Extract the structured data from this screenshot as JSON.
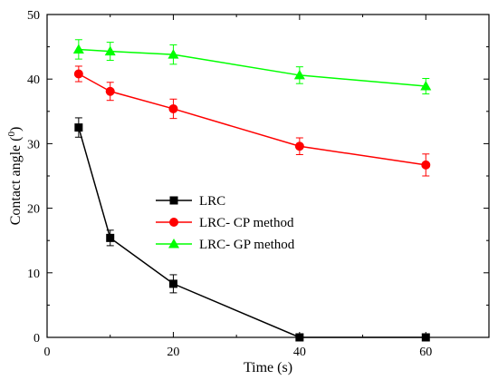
{
  "chart_data": {
    "type": "line",
    "xlabel": "Time (s)",
    "ylabel_main": "Contact angle (",
    "ylabel_sup": "0",
    "ylabel_end": ")",
    "xlim": [
      0,
      70
    ],
    "ylim": [
      0,
      50
    ],
    "xticks": [
      0,
      20,
      40,
      60
    ],
    "yticks": [
      0,
      10,
      20,
      30,
      40,
      50
    ],
    "grid": false,
    "legend_position": "center-left",
    "series": [
      {
        "name": "LRC",
        "color": "#000000",
        "marker": "square",
        "x": [
          5,
          10,
          20,
          40,
          60
        ],
        "y": [
          32.5,
          15.4,
          8.3,
          0,
          0
        ],
        "err": [
          1.5,
          1.2,
          1.4,
          0,
          0
        ]
      },
      {
        "name": "LRC- CP method",
        "color": "#ff0000",
        "marker": "circle",
        "x": [
          5,
          10,
          20,
          40,
          60
        ],
        "y": [
          40.8,
          38.1,
          35.4,
          29.6,
          26.7
        ],
        "err": [
          1.2,
          1.4,
          1.5,
          1.3,
          1.7
        ]
      },
      {
        "name": "LRC- GP method",
        "color": "#00ff00",
        "marker": "triangle",
        "x": [
          5,
          10,
          20,
          40,
          60
        ],
        "y": [
          44.6,
          44.3,
          43.8,
          40.6,
          38.9
        ],
        "err": [
          1.5,
          1.4,
          1.5,
          1.3,
          1.2
        ]
      }
    ]
  }
}
